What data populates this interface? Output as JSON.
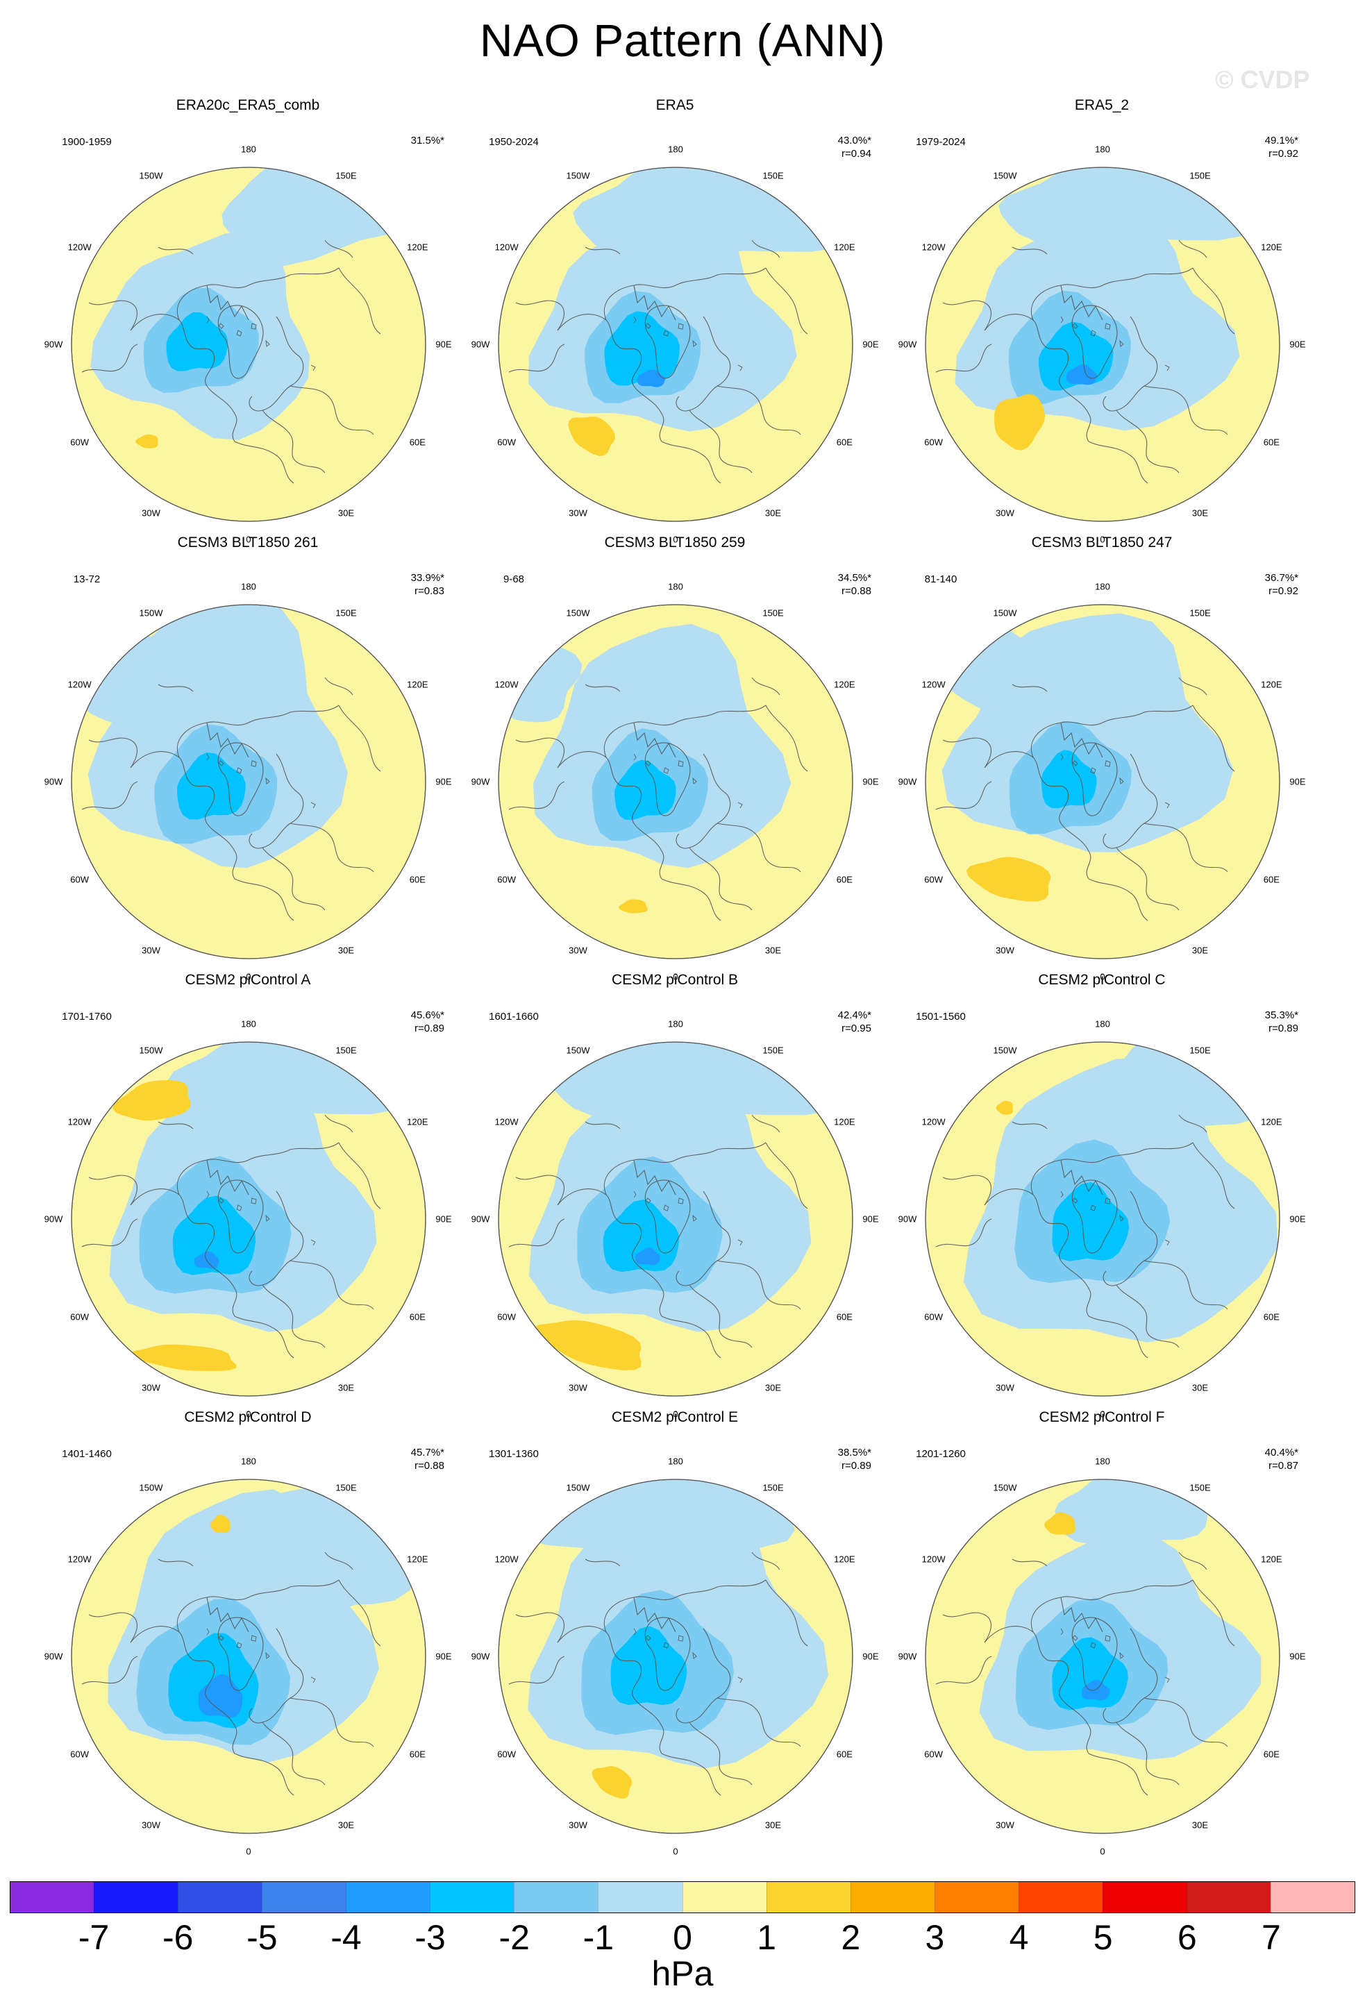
{
  "title": "NAO Pattern (ANN)",
  "watermark": "© CVDP",
  "lon_labels": [
    "180",
    "150E",
    "120E",
    "90E",
    "60E",
    "30E",
    "0",
    "30W",
    "60W",
    "90W",
    "120W",
    "150W"
  ],
  "colors": {
    "neg7": "#8a2be2",
    "neg6": "#1a1aff",
    "neg5": "#2f4ee6",
    "neg4": "#3c82ea",
    "neg3": "#1f9bff",
    "neg2": "#00c3ff",
    "neg1": "#7ccbf2",
    "neg0": "#b5def2",
    "pos0": "#fbf6a2",
    "pos1": "#fcd22e",
    "pos2": "#fcad00",
    "pos3": "#fd7f00",
    "pos4": "#ff4500",
    "pos5": "#ee0000",
    "pos6": "#d21c1c",
    "pos7": "#ffb6b6"
  },
  "colorbar": {
    "colors": [
      "#8a2be2",
      "#1a1aff",
      "#2f4ee6",
      "#3c82ea",
      "#1f9bff",
      "#00c3ff",
      "#7ccbf2",
      "#b5def2",
      "#fbf6a2",
      "#fcd22e",
      "#fcad00",
      "#fd7f00",
      "#ff4500",
      "#ee0000",
      "#d21c1c",
      "#ffb6b6"
    ],
    "labels": [
      "-7",
      "-6",
      "-5",
      "-4",
      "-3",
      "-2",
      "-1",
      "0",
      "1",
      "2",
      "3",
      "4",
      "5",
      "6",
      "7"
    ],
    "unit": "hPa"
  },
  "panels": [
    {
      "title": "ERA20c_ERA5_comb",
      "period": "1900-1959",
      "pct": "31.5%*",
      "r": ""
    },
    {
      "title": "ERA5",
      "period": "1950-2024",
      "pct": "43.0%*",
      "r": "r=0.94"
    },
    {
      "title": "ERA5_2",
      "period": "1979-2024",
      "pct": "49.1%*",
      "r": "r=0.92"
    },
    {
      "title": "CESM3 BLT1850 261",
      "period": "13-72",
      "pct": "33.9%*",
      "r": "r=0.83"
    },
    {
      "title": "CESM3 BLT1850 259",
      "period": "9-68",
      "pct": "34.5%*",
      "r": "r=0.88"
    },
    {
      "title": "CESM3 BLT1850 247",
      "period": "81-140",
      "pct": "36.7%*",
      "r": "r=0.92"
    },
    {
      "title": "CESM2 piControl A",
      "period": "1701-1760",
      "pct": "45.6%*",
      "r": "r=0.89"
    },
    {
      "title": "CESM2 piControl B",
      "period": "1601-1660",
      "pct": "42.4%*",
      "r": "r=0.95"
    },
    {
      "title": "CESM2 piControl C",
      "period": "1501-1560",
      "pct": "35.3%*",
      "r": "r=0.89"
    },
    {
      "title": "CESM2 piControl D",
      "period": "1401-1460",
      "pct": "45.7%*",
      "r": "r=0.88"
    },
    {
      "title": "CESM2 piControl E",
      "period": "1301-1360",
      "pct": "38.5%*",
      "r": "r=0.89"
    },
    {
      "title": "CESM2 piControl F",
      "period": "1201-1260",
      "pct": "40.4%*",
      "r": "r=0.87"
    }
  ]
}
